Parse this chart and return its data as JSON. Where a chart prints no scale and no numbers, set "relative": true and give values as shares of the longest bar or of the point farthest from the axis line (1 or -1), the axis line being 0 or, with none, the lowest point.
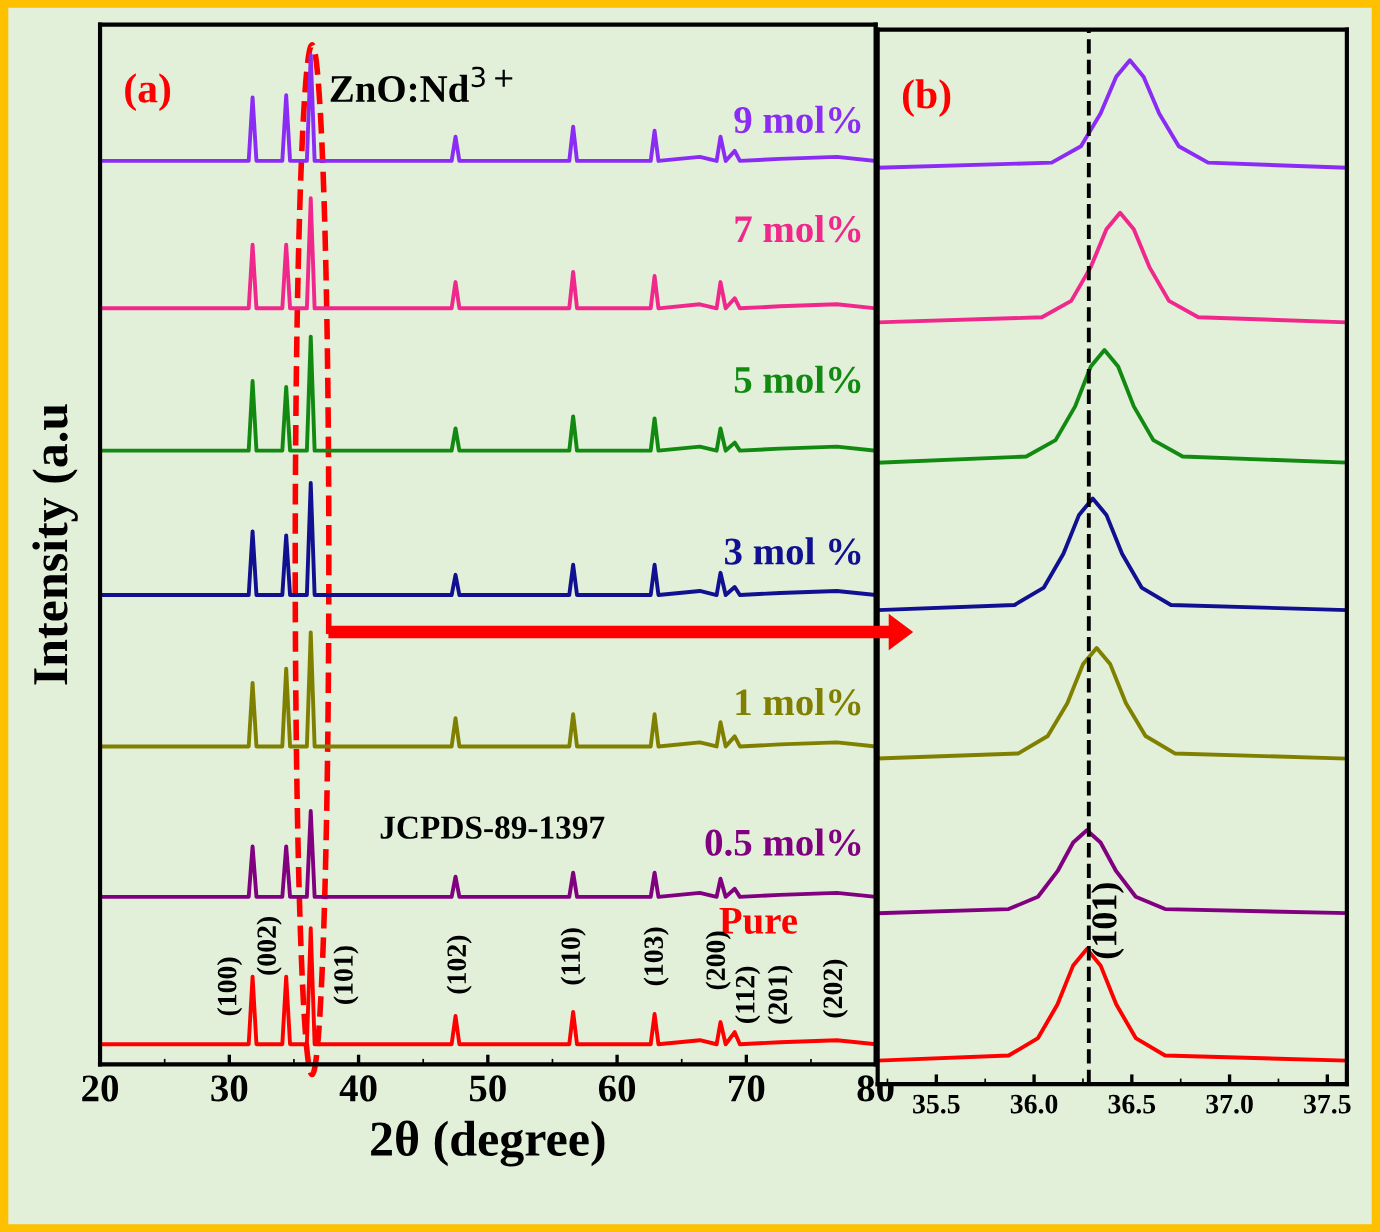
{
  "chart_data": [
    {
      "type": "line",
      "relative": true,
      "xlabel": "2θ (degree)",
      "ylabel": "Intensity (a.u",
      "xlim": [
        20,
        80
      ],
      "xticks": [
        20,
        30,
        40,
        50,
        60,
        70,
        80
      ],
      "grid": false,
      "legend": false,
      "marker": "none",
      "line_style": "solid",
      "x": [
        20,
        25,
        31.5,
        31.8,
        32.1,
        34.1,
        34.4,
        34.7,
        36.0,
        36.3,
        36.6,
        47.2,
        47.5,
        47.8,
        56.3,
        56.6,
        56.9,
        62.6,
        62.9,
        63.2,
        66.4,
        67.7,
        68.0,
        68.4,
        69.1,
        69.5,
        72.6,
        77.0,
        80
      ],
      "series": [
        {
          "name": "9 mol%",
          "color": "#8b2cf5",
          "values": [
            0.895,
            0.895,
            0.895,
            0.958,
            0.895,
            0.895,
            0.96,
            0.895,
            0.895,
            1.0,
            0.895,
            0.895,
            0.919,
            0.895,
            0.895,
            0.929,
            0.895,
            0.895,
            0.925,
            0.895,
            0.899,
            0.895,
            0.919,
            0.895,
            0.905,
            0.895,
            0.897,
            0.899,
            0.895
          ]
        },
        {
          "name": "7 mol%",
          "color": "#f0288c",
          "values": [
            0.749,
            0.749,
            0.749,
            0.812,
            0.749,
            0.749,
            0.812,
            0.749,
            0.749,
            0.858,
            0.749,
            0.749,
            0.775,
            0.749,
            0.749,
            0.785,
            0.749,
            0.749,
            0.781,
            0.749,
            0.753,
            0.749,
            0.775,
            0.749,
            0.759,
            0.749,
            0.751,
            0.753,
            0.749
          ]
        },
        {
          "name": "5 mol%",
          "color": "#128a12",
          "values": [
            0.608,
            0.608,
            0.608,
            0.677,
            0.608,
            0.608,
            0.671,
            0.608,
            0.608,
            0.721,
            0.608,
            0.608,
            0.63,
            0.608,
            0.608,
            0.642,
            0.608,
            0.608,
            0.64,
            0.608,
            0.612,
            0.608,
            0.63,
            0.608,
            0.616,
            0.608,
            0.61,
            0.612,
            0.608
          ]
        },
        {
          "name": "3 mol %",
          "color": "#101090",
          "values": [
            0.465,
            0.465,
            0.465,
            0.528,
            0.465,
            0.465,
            0.524,
            0.465,
            0.465,
            0.576,
            0.465,
            0.465,
            0.485,
            0.465,
            0.465,
            0.495,
            0.465,
            0.465,
            0.495,
            0.465,
            0.469,
            0.465,
            0.487,
            0.465,
            0.473,
            0.465,
            0.467,
            0.469,
            0.465
          ]
        },
        {
          "name": "1 mol%",
          "color": "#808000",
          "values": [
            0.315,
            0.315,
            0.315,
            0.378,
            0.315,
            0.315,
            0.392,
            0.315,
            0.315,
            0.428,
            0.315,
            0.315,
            0.343,
            0.315,
            0.315,
            0.347,
            0.315,
            0.315,
            0.347,
            0.315,
            0.319,
            0.315,
            0.339,
            0.315,
            0.325,
            0.315,
            0.317,
            0.319,
            0.315
          ]
        },
        {
          "name": "0.5 mol%",
          "color": "#800080",
          "values": [
            0.166,
            0.166,
            0.166,
            0.216,
            0.166,
            0.166,
            0.216,
            0.166,
            0.166,
            0.251,
            0.166,
            0.166,
            0.186,
            0.166,
            0.166,
            0.19,
            0.166,
            0.166,
            0.19,
            0.166,
            0.17,
            0.166,
            0.184,
            0.166,
            0.174,
            0.166,
            0.168,
            0.17,
            0.166
          ]
        },
        {
          "name": "Pure",
          "color": "#ff0000",
          "values": [
            0.02,
            0.02,
            0.02,
            0.087,
            0.02,
            0.02,
            0.087,
            0.02,
            0.02,
            0.135,
            0.02,
            0.02,
            0.048,
            0.02,
            0.02,
            0.052,
            0.02,
            0.02,
            0.05,
            0.02,
            0.024,
            0.02,
            0.042,
            0.02,
            0.032,
            0.02,
            0.022,
            0.024,
            0.02
          ]
        }
      ],
      "annotations": [
        "(a)",
        "ZnO:Nd$^{3+}$",
        "JCPDS-89-1397",
        "(100)",
        "(002)",
        "(101)",
        "(102)",
        "(110)",
        "(103)",
        "(200)",
        "(112)",
        "(201)",
        "(202)"
      ]
    },
    {
      "type": "line",
      "relative": true,
      "xlim": [
        35.2,
        37.6
      ],
      "xticks": [
        {
          "value": 35.5,
          "label": "35.5"
        },
        {
          "value": 36.0,
          "label": "36.0"
        },
        {
          "value": 36.5,
          "label": "36.5"
        },
        {
          "value": 37.0,
          "label": "37.0"
        },
        {
          "value": 37.5,
          "label": "37.5"
        }
      ],
      "grid": false,
      "legend": false,
      "marker": "none",
      "line_style": "solid",
      "series": [
        {
          "color": "#8b2cf5",
          "x": [
            35.2,
            36.09,
            36.24,
            36.34,
            36.42,
            36.49,
            36.56,
            36.64,
            36.74,
            36.89,
            37.6
          ],
          "values": [
            0.895,
            0.9,
            0.916,
            0.948,
            0.984,
            1.0,
            0.984,
            0.948,
            0.916,
            0.9,
            0.895
          ]
        },
        {
          "color": "#f0288c",
          "x": [
            35.2,
            36.04,
            36.19,
            36.29,
            36.37,
            36.44,
            36.51,
            36.59,
            36.69,
            36.84,
            37.6
          ],
          "values": [
            0.744,
            0.749,
            0.765,
            0.798,
            0.835,
            0.851,
            0.835,
            0.798,
            0.765,
            0.749,
            0.744
          ]
        },
        {
          "color": "#128a12",
          "x": [
            35.2,
            35.96,
            36.11,
            36.21,
            36.29,
            36.36,
            36.43,
            36.51,
            36.61,
            36.76,
            37.6
          ],
          "values": [
            0.607,
            0.613,
            0.629,
            0.662,
            0.701,
            0.717,
            0.701,
            0.662,
            0.629,
            0.613,
            0.607
          ]
        },
        {
          "color": "#101090",
          "x": [
            35.2,
            35.9,
            36.05,
            36.15,
            36.23,
            36.3,
            36.37,
            36.45,
            36.55,
            36.7,
            37.6
          ],
          "values": [
            0.463,
            0.468,
            0.485,
            0.518,
            0.556,
            0.572,
            0.556,
            0.518,
            0.485,
            0.468,
            0.463
          ]
        },
        {
          "color": "#808000",
          "x": [
            35.2,
            35.92,
            36.07,
            36.17,
            36.25,
            36.32,
            36.39,
            36.47,
            36.57,
            36.72,
            37.6
          ],
          "values": [
            0.318,
            0.323,
            0.34,
            0.372,
            0.41,
            0.426,
            0.41,
            0.372,
            0.34,
            0.323,
            0.318
          ]
        },
        {
          "color": "#800080",
          "x": [
            35.2,
            35.87,
            36.02,
            36.12,
            36.2,
            36.27,
            36.34,
            36.42,
            36.52,
            36.67,
            37.6
          ],
          "values": [
            0.167,
            0.171,
            0.183,
            0.208,
            0.236,
            0.248,
            0.236,
            0.208,
            0.183,
            0.171,
            0.167
          ]
        },
        {
          "color": "#ff0000",
          "x": [
            35.2,
            35.87,
            36.02,
            36.12,
            36.2,
            36.27,
            36.34,
            36.42,
            36.52,
            36.67,
            37.6
          ],
          "values": [
            0.023,
            0.028,
            0.045,
            0.078,
            0.116,
            0.132,
            0.116,
            0.078,
            0.045,
            0.028,
            0.023
          ]
        }
      ],
      "ref_lines": [
        {
          "axis": "x",
          "value": 36.28,
          "color": "#000000",
          "line_style": "dashed"
        }
      ],
      "annotations": [
        "(b)",
        "(101)"
      ]
    }
  ]
}
